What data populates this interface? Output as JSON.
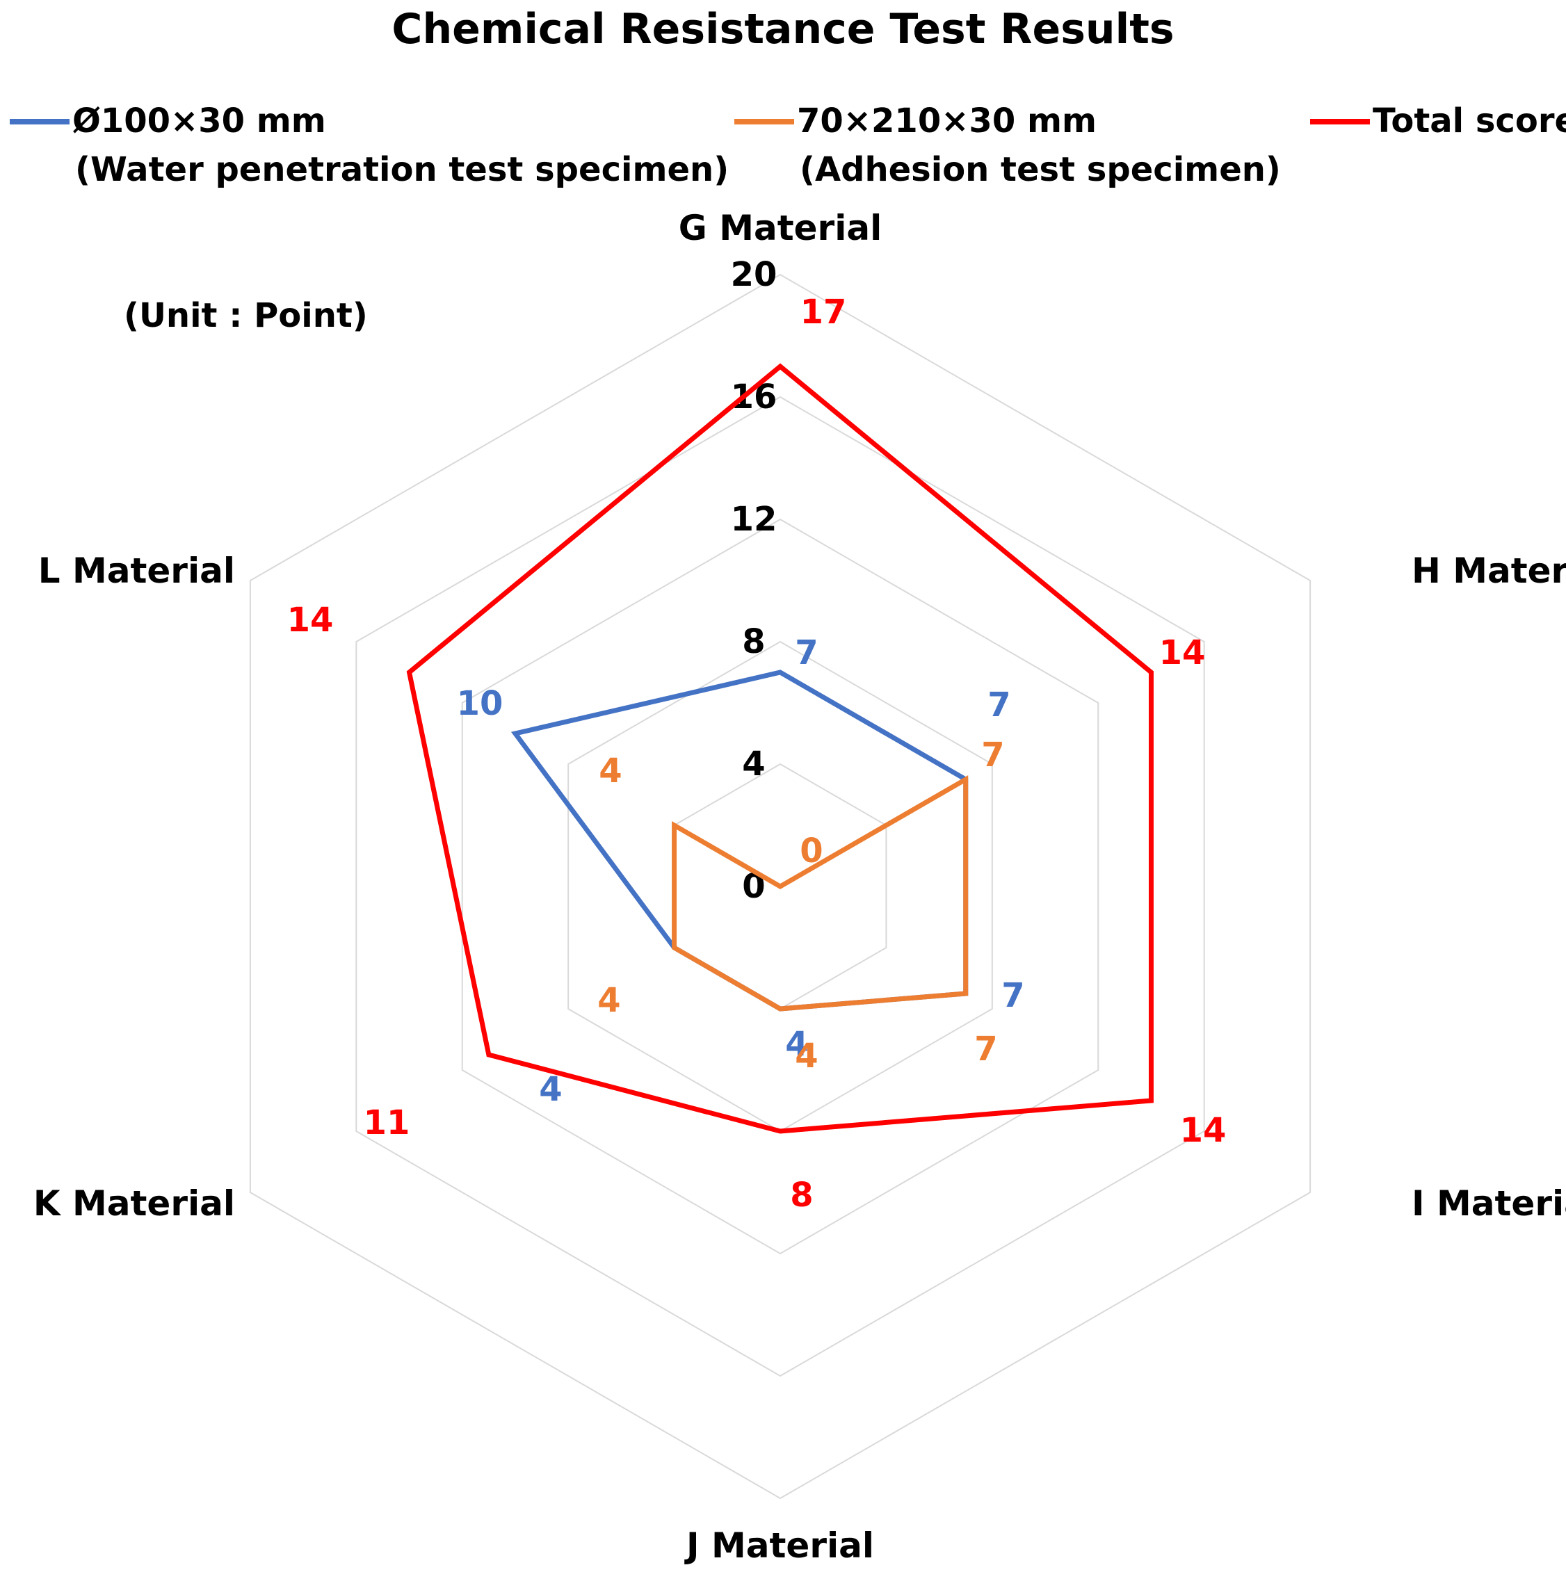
{
  "chart_data": {
    "type": "radar",
    "title": "Chemical Resistance Test Results",
    "unit_note": "(Unit : Point)",
    "categories": [
      "G Material",
      "H Material",
      "I Material",
      "J Material",
      "K Material",
      "L Material"
    ],
    "r_ticks": [
      "0",
      "4",
      "8",
      "12",
      "16",
      "20"
    ],
    "r_range": [
      0,
      20
    ],
    "grid": true,
    "legend_position": "top",
    "series": [
      {
        "name_line1": "Ø100×30 mm",
        "name_line2": "(Water penetration test specimen)",
        "color": "#4472C4",
        "values": [
          7,
          7,
          7,
          4,
          4,
          10
        ],
        "labels": [
          "7",
          "7",
          "7",
          "4",
          "4",
          "10"
        ]
      },
      {
        "name_line1": "70×210×30 mm",
        "name_line2": "(Adhesion test specimen)",
        "color": "#ED7D31",
        "values": [
          0,
          7,
          7,
          4,
          4,
          4
        ],
        "labels": [
          "0",
          "7",
          "7",
          "4",
          "4",
          "4"
        ]
      },
      {
        "name_line1": "Total score",
        "name_line2": "",
        "color": "#FF0000",
        "values": [
          17,
          14,
          14,
          8,
          11,
          14
        ],
        "labels": [
          "17",
          "14",
          "14",
          "8",
          "11",
          "14"
        ],
        "extra_labels": [
          "7"
        ]
      }
    ],
    "grid_color": "#D9D9D9"
  }
}
